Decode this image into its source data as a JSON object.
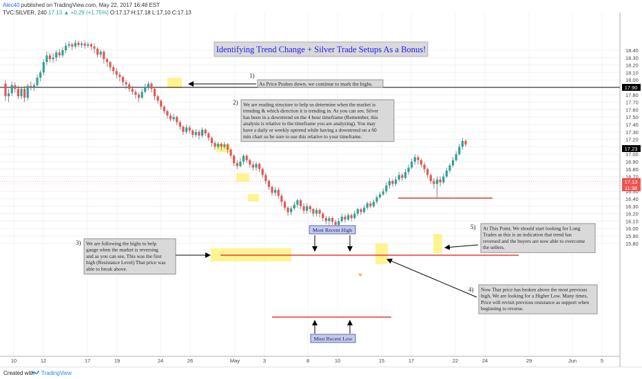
{
  "header": {
    "publisher": "Alec40",
    "published_text": "published on TradingView.com, May 22, 2017 16:48 EST",
    "symbol": "TVC:SILVER, 240",
    "last_change": "17.13 ▲ +0.29 (+1.75%)",
    "ohlc": "O:17.17 H:17.18 L:17.10 C:17.13"
  },
  "footer": {
    "created_with": "Created with",
    "brand": "TradingView"
  },
  "chart_data": {
    "type": "candlestick",
    "title": "Identifying Trend Change + Silver Trade Setups As a Bonus!",
    "y_axis": {
      "ylim": [
        15.72,
        18.55
      ],
      "ticks": [
        "15.80",
        "15.90",
        "16.00",
        "16.10",
        "16.20",
        "16.30",
        "16.40",
        "16.50",
        "16.60",
        "16.70",
        "16.80",
        "16.90",
        "17.00",
        "17.10",
        "17.20",
        "17.30",
        "17.40",
        "17.50",
        "17.60",
        "17.70",
        "17.80",
        "17.90",
        "18.00",
        "18.10",
        "18.20",
        "18.30",
        "18.40"
      ]
    },
    "x_axis": {
      "ticks": [
        "10",
        "12",
        "17",
        "19",
        "24",
        "26",
        "May",
        "3",
        "8",
        "10",
        "15",
        "17",
        "22",
        "24",
        "29",
        "Jun",
        "5"
      ]
    },
    "price_tags": [
      {
        "value": "17.90",
        "bg": "#000000"
      },
      {
        "value": "17.23",
        "bg": "#000000"
      },
      {
        "value": "17.13",
        "bg": "#ef5350"
      },
      {
        "value": "11:38",
        "bg": "#ef5350"
      }
    ],
    "up_color": "#26a69a",
    "down_color": "#ef5350",
    "candles": [
      [
        17.95,
        17.78,
        18.0,
        17.72
      ],
      [
        17.78,
        17.82,
        17.88,
        17.7
      ],
      [
        17.82,
        17.93,
        17.98,
        17.78
      ],
      [
        17.93,
        17.88,
        17.97,
        17.83
      ],
      [
        17.88,
        17.78,
        17.92,
        17.74
      ],
      [
        17.78,
        17.88,
        17.9,
        17.74
      ],
      [
        17.88,
        17.76,
        17.92,
        17.7
      ],
      [
        17.76,
        17.92,
        17.95,
        17.72
      ],
      [
        17.92,
        17.9,
        17.98,
        17.86
      ],
      [
        17.9,
        17.93,
        17.96,
        17.85
      ],
      [
        17.93,
        18.03,
        18.07,
        17.9
      ],
      [
        18.03,
        18.1,
        18.13,
        17.98
      ],
      [
        18.1,
        18.24,
        18.28,
        18.06
      ],
      [
        18.24,
        18.33,
        18.38,
        18.2
      ],
      [
        18.33,
        18.28,
        18.36,
        18.24
      ],
      [
        18.28,
        18.3,
        18.36,
        18.23
      ],
      [
        18.3,
        18.37,
        18.4,
        18.25
      ],
      [
        18.37,
        18.33,
        18.42,
        18.3
      ],
      [
        18.33,
        18.4,
        18.44,
        18.3
      ],
      [
        18.4,
        18.46,
        18.5,
        18.36
      ],
      [
        18.46,
        18.48,
        18.52,
        18.43
      ],
      [
        18.48,
        18.45,
        18.5,
        18.4
      ],
      [
        18.45,
        18.5,
        18.54,
        18.42
      ],
      [
        18.5,
        18.47,
        18.53,
        18.44
      ],
      [
        18.47,
        18.49,
        18.52,
        18.43
      ],
      [
        18.49,
        18.46,
        18.53,
        18.42
      ],
      [
        18.46,
        18.48,
        18.51,
        18.43
      ],
      [
        18.48,
        18.45,
        18.5,
        18.4
      ],
      [
        18.45,
        18.42,
        18.49,
        18.36
      ],
      [
        18.42,
        18.34,
        18.44,
        18.3
      ],
      [
        18.34,
        18.38,
        18.41,
        18.3
      ],
      [
        18.38,
        18.28,
        18.4,
        18.22
      ],
      [
        18.28,
        18.24,
        18.3,
        18.18
      ],
      [
        18.24,
        18.17,
        18.26,
        18.12
      ],
      [
        18.17,
        18.12,
        18.2,
        18.07
      ],
      [
        18.12,
        18.07,
        18.16,
        18.02
      ],
      [
        18.07,
        18.04,
        18.1,
        17.98
      ],
      [
        18.04,
        17.97,
        18.06,
        17.92
      ],
      [
        17.97,
        17.94,
        18.0,
        17.88
      ],
      [
        17.94,
        17.88,
        17.97,
        17.84
      ],
      [
        17.88,
        17.84,
        17.92,
        17.8
      ],
      [
        17.84,
        17.8,
        17.87,
        17.75
      ],
      [
        17.8,
        17.76,
        17.83,
        17.7
      ],
      [
        17.76,
        17.84,
        17.88,
        17.74
      ],
      [
        17.84,
        17.9,
        17.95,
        17.82
      ],
      [
        17.9,
        17.95,
        17.98,
        17.86
      ],
      [
        17.95,
        17.88,
        17.97,
        17.83
      ],
      [
        17.88,
        17.78,
        17.9,
        17.73
      ],
      [
        17.78,
        17.72,
        17.8,
        17.68
      ],
      [
        17.72,
        17.64,
        17.74,
        17.6
      ],
      [
        17.64,
        17.58,
        17.66,
        17.54
      ],
      [
        17.58,
        17.52,
        17.6,
        17.48
      ],
      [
        17.52,
        17.47,
        17.55,
        17.44
      ],
      [
        17.47,
        17.5,
        17.54,
        17.44
      ],
      [
        17.5,
        17.43,
        17.52,
        17.39
      ],
      [
        17.43,
        17.37,
        17.46,
        17.33
      ],
      [
        17.37,
        17.3,
        17.39,
        17.26
      ],
      [
        17.3,
        17.36,
        17.4,
        17.27
      ],
      [
        17.36,
        17.32,
        17.39,
        17.28
      ],
      [
        17.32,
        17.26,
        17.34,
        17.22
      ],
      [
        17.26,
        17.3,
        17.34,
        17.23
      ],
      [
        17.3,
        17.25,
        17.33,
        17.2
      ],
      [
        17.25,
        17.33,
        17.36,
        17.22
      ],
      [
        17.33,
        17.28,
        17.35,
        17.25
      ],
      [
        17.28,
        17.22,
        17.3,
        17.18
      ],
      [
        17.22,
        17.15,
        17.24,
        17.1
      ],
      [
        17.15,
        17.1,
        17.18,
        17.06
      ],
      [
        17.1,
        17.14,
        17.17,
        17.07
      ],
      [
        17.14,
        17.1,
        17.16,
        17.05
      ],
      [
        17.1,
        17.13,
        17.17,
        17.07
      ],
      [
        17.13,
        17.06,
        17.15,
        17.01
      ],
      [
        17.06,
        16.98,
        17.08,
        16.94
      ],
      [
        16.98,
        16.88,
        17.0,
        16.84
      ],
      [
        16.88,
        16.84,
        16.92,
        16.8
      ],
      [
        16.84,
        16.9,
        16.95,
        16.82
      ],
      [
        16.9,
        16.98,
        17.0,
        16.86
      ],
      [
        16.98,
        16.92,
        17.0,
        16.88
      ],
      [
        16.92,
        16.86,
        16.94,
        16.82
      ],
      [
        16.86,
        16.82,
        16.9,
        16.78
      ],
      [
        16.82,
        16.87,
        16.9,
        16.78
      ],
      [
        16.87,
        16.8,
        16.89,
        16.76
      ],
      [
        16.8,
        16.72,
        16.82,
        16.68
      ],
      [
        16.72,
        16.64,
        16.75,
        16.6
      ],
      [
        16.64,
        16.56,
        16.66,
        16.52
      ],
      [
        16.56,
        16.48,
        16.58,
        16.44
      ],
      [
        16.48,
        16.52,
        16.56,
        16.44
      ],
      [
        16.52,
        16.44,
        16.55,
        16.4
      ],
      [
        16.44,
        16.36,
        16.47,
        16.3
      ],
      [
        16.36,
        16.28,
        16.38,
        16.24
      ],
      [
        16.28,
        16.22,
        16.3,
        16.17
      ],
      [
        16.22,
        16.27,
        16.3,
        16.18
      ],
      [
        16.27,
        16.32,
        16.36,
        16.24
      ],
      [
        16.32,
        16.38,
        16.4,
        16.28
      ],
      [
        16.38,
        16.3,
        16.4,
        16.26
      ],
      [
        16.3,
        16.24,
        16.34,
        16.2
      ],
      [
        16.24,
        16.3,
        16.34,
        16.2
      ],
      [
        16.3,
        16.26,
        16.32,
        16.21
      ],
      [
        16.26,
        16.2,
        16.28,
        16.16
      ],
      [
        16.2,
        16.25,
        16.28,
        16.16
      ],
      [
        16.25,
        16.2,
        16.27,
        16.15
      ],
      [
        16.2,
        16.14,
        16.22,
        16.1
      ],
      [
        16.14,
        16.1,
        16.17,
        16.06
      ],
      [
        16.1,
        16.14,
        16.17,
        16.05
      ],
      [
        16.14,
        16.09,
        16.16,
        16.05
      ],
      [
        16.09,
        16.05,
        16.12,
        16.02
      ],
      [
        16.05,
        16.1,
        16.14,
        16.03
      ],
      [
        16.1,
        16.16,
        16.2,
        16.08
      ],
      [
        16.16,
        16.12,
        16.19,
        16.08
      ],
      [
        16.12,
        16.18,
        16.21,
        16.1
      ],
      [
        16.18,
        16.14,
        16.2,
        16.1
      ],
      [
        16.14,
        16.2,
        16.24,
        16.12
      ],
      [
        16.2,
        16.26,
        16.28,
        16.17
      ],
      [
        16.26,
        16.22,
        16.28,
        16.18
      ],
      [
        16.22,
        16.28,
        16.32,
        16.2
      ],
      [
        16.28,
        16.34,
        16.36,
        16.25
      ],
      [
        16.34,
        16.3,
        16.37,
        16.27
      ],
      [
        16.3,
        16.36,
        16.39,
        16.28
      ],
      [
        16.36,
        16.42,
        16.45,
        16.33
      ],
      [
        16.42,
        16.46,
        16.49,
        16.4
      ],
      [
        16.46,
        16.5,
        16.54,
        16.44
      ],
      [
        16.5,
        16.58,
        16.62,
        16.47
      ],
      [
        16.58,
        16.64,
        16.68,
        16.54
      ],
      [
        16.64,
        16.6,
        16.67,
        16.56
      ],
      [
        16.6,
        16.66,
        16.7,
        16.57
      ],
      [
        16.66,
        16.72,
        16.76,
        16.63
      ],
      [
        16.72,
        16.68,
        16.75,
        16.64
      ],
      [
        16.68,
        16.76,
        16.8,
        16.66
      ],
      [
        16.76,
        16.82,
        16.86,
        16.72
      ],
      [
        16.82,
        16.9,
        16.94,
        16.8
      ],
      [
        16.9,
        16.96,
        17.0,
        16.86
      ],
      [
        16.96,
        16.92,
        16.99,
        16.86
      ],
      [
        16.92,
        16.86,
        16.94,
        16.82
      ],
      [
        16.86,
        16.8,
        16.89,
        16.75
      ],
      [
        16.8,
        16.72,
        16.82,
        16.68
      ],
      [
        16.72,
        16.64,
        16.74,
        16.6
      ],
      [
        16.64,
        16.6,
        16.68,
        16.54
      ],
      [
        16.6,
        16.66,
        16.7,
        16.42
      ],
      [
        16.66,
        16.62,
        16.7,
        16.57
      ],
      [
        16.62,
        16.7,
        16.74,
        16.6
      ],
      [
        16.7,
        16.78,
        16.82,
        16.68
      ],
      [
        16.78,
        16.85,
        16.88,
        16.75
      ],
      [
        16.85,
        16.92,
        16.96,
        16.82
      ],
      [
        16.92,
        17.0,
        17.04,
        16.9
      ],
      [
        17.0,
        17.1,
        17.14,
        16.98
      ],
      [
        17.1,
        17.18,
        17.22,
        17.06
      ],
      [
        17.18,
        17.13,
        17.2,
        17.1
      ]
    ],
    "annotations": [
      {
        "num": "1)",
        "text": "As Price Pushes down, we continue to mark the highs."
      },
      {
        "num": "2)",
        "lines": [
          "We are reading structure to help us determine when the market is",
          "trending & which direction it is trending in. As you can see, Silver",
          "has been in a downtrend on the 4 hour timeframe (Remember, this",
          "analysis is relative to the timeframe you are analyzing). You may",
          "have a daily or weekly uptrend while having a downtrend on a 60",
          "min chart so be sure to use this relative to your timeframe."
        ]
      },
      {
        "num": "3)",
        "lines": [
          "We are following the highs to help",
          "gauge when the market is reversing",
          "and as you can see, This was the first",
          "high (Resistance Level) That price was",
          "able to break above."
        ]
      },
      {
        "num": "4)",
        "lines": [
          "Now That price has broken above the most previous",
          "high, We are looking for a Higher Low. Many times,",
          "Price will revisit previous resistance as support when",
          "beginning to reverse."
        ]
      },
      {
        "num": "5)",
        "lines": [
          "At This Point, We should start looking for Long",
          "Trades as this is an indication that trend has",
          "reversed and the buyers are now able to overcome",
          "the sellers."
        ]
      }
    ],
    "labels": {
      "recent_high": "Most Recent High",
      "recent_low": "Most Recent Low"
    }
  }
}
